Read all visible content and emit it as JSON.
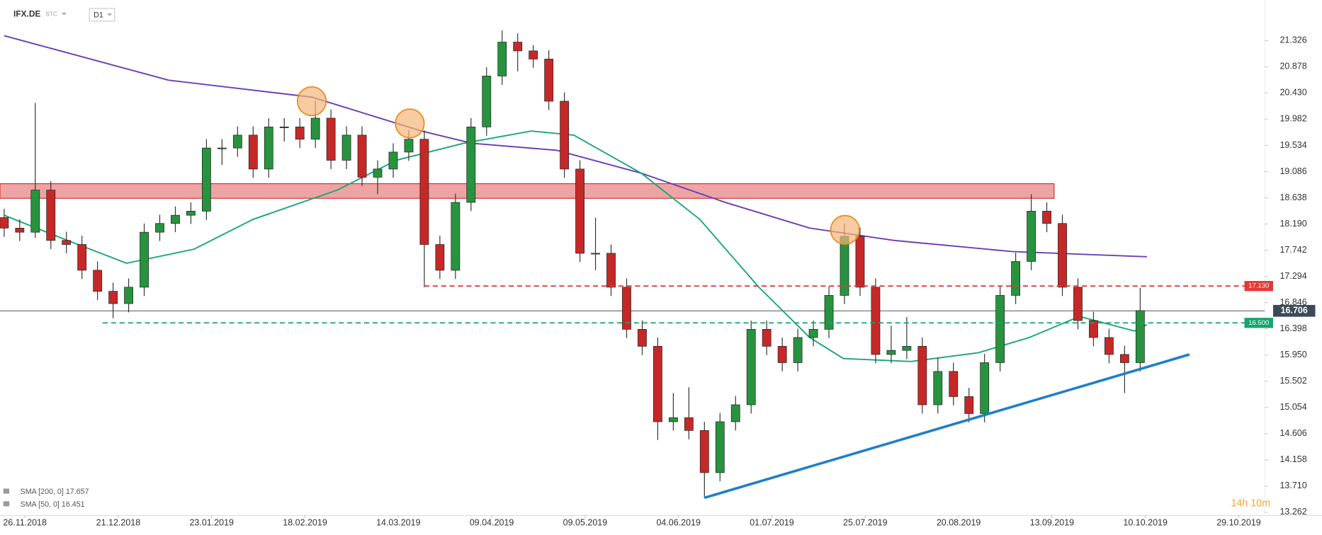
{
  "chart_data": {
    "type": "candlestick",
    "symbol": "IFX.DE",
    "subtitle": "STC",
    "interval": "D1",
    "countdown": "14h 10m",
    "xlim": [
      -0.8,
      243
    ],
    "ylim": [
      13.22,
      22.02
    ],
    "yticks": [
      21.326,
      20.878,
      {
        "value": 20.43,
        "label": "20.430"
      },
      19.982,
      19.534,
      19.086,
      18.638,
      {
        "value": 18.19,
        "label": "18.190"
      },
      17.742,
      17.294,
      16.846,
      16.398,
      {
        "value": 15.95,
        "label": "15.950"
      },
      15.502,
      15.054,
      14.606,
      14.158,
      {
        "value": 13.71,
        "label": "13.710"
      },
      13.262
    ],
    "xticks": [
      {
        "value": 4,
        "label": "26.11.2018"
      },
      {
        "value": 22,
        "label": "21.12.2018"
      },
      {
        "value": 40,
        "label": "23.01.2019"
      },
      {
        "value": 58,
        "label": "18.02.2019"
      },
      {
        "value": 76,
        "label": "14.03.2019"
      },
      {
        "value": 94,
        "label": "09.04.2019"
      },
      {
        "value": 112,
        "label": "09.05.2019"
      },
      {
        "value": 130,
        "label": "04.06.2019"
      },
      {
        "value": 148,
        "label": "01.07.2019"
      },
      {
        "value": 166,
        "label": "25.07.2019"
      },
      {
        "value": 184,
        "label": "20.08.2019"
      },
      {
        "value": 202,
        "label": "13.09.2019"
      },
      {
        "value": 220,
        "label": "10.10.2019"
      },
      {
        "value": 238,
        "label": "29.10.2019"
      }
    ],
    "up_color": "#27933f",
    "down_color": "#c62828",
    "x": [
      0,
      3,
      6,
      9,
      12,
      15,
      18,
      21,
      24,
      27,
      30,
      33,
      36,
      39,
      42,
      45,
      48,
      51,
      54,
      57,
      60,
      63,
      66,
      69,
      72,
      75,
      78,
      81,
      84,
      87,
      90,
      93,
      96,
      99,
      102,
      105,
      108,
      111,
      114,
      117,
      120,
      123,
      126,
      129,
      132,
      135,
      138,
      141,
      144,
      147,
      150,
      153,
      156,
      159,
      162,
      165,
      168,
      171,
      174,
      177,
      180,
      183,
      186,
      189,
      192,
      195,
      198,
      201,
      204,
      207,
      210,
      213,
      216,
      219
    ],
    "open": [
      18.3,
      18.12,
      18.05,
      18.77,
      17.91,
      17.84,
      17.4,
      17.04,
      16.83,
      17.11,
      18.05,
      18.2,
      18.34,
      18.41,
      19.49,
      19.49,
      19.71,
      19.13,
      19.85,
      19.85,
      19.64,
      20.0,
      19.28,
      19.71,
      18.99,
      19.13,
      19.42,
      19.64,
      17.84,
      17.4,
      18.56,
      19.85,
      20.72,
      21.3,
      21.15,
      21.01,
      20.29,
      19.13,
      17.69,
      17.69,
      17.11,
      16.39,
      16.1,
      14.81,
      14.88,
      14.66,
      13.94,
      14.81,
      15.1,
      16.39,
      16.1,
      15.82,
      16.25,
      16.39,
      16.97,
      17.98,
      17.11,
      15.96,
      16.03,
      16.1,
      15.1,
      15.67,
      15.24,
      14.95,
      15.82,
      16.97,
      17.55,
      18.41,
      18.2,
      17.11,
      16.54,
      16.25,
      15.96,
      15.82
    ],
    "high": [
      18.45,
      18.27,
      20.26,
      18.92,
      18.06,
      17.99,
      17.55,
      17.19,
      17.26,
      18.2,
      18.35,
      18.49,
      18.56,
      19.64,
      19.64,
      19.86,
      19.86,
      20.0,
      20.0,
      20.0,
      20.3,
      20.15,
      19.86,
      19.86,
      19.28,
      19.57,
      19.79,
      19.79,
      17.99,
      18.71,
      20.0,
      20.87,
      21.5,
      21.45,
      21.25,
      21.16,
      20.44,
      19.28,
      18.3,
      17.84,
      17.26,
      16.54,
      16.25,
      15.3,
      15.4,
      14.81,
      14.96,
      15.25,
      16.54,
      16.54,
      16.25,
      16.4,
      16.54,
      17.12,
      18.2,
      18.13,
      17.26,
      16.45,
      16.6,
      16.25,
      15.9,
      15.82,
      15.39,
      15.97,
      17.12,
      17.7,
      18.7,
      18.56,
      18.35,
      17.26,
      16.69,
      16.4,
      16.11,
      17.1
    ],
    "low": [
      17.97,
      17.9,
      17.95,
      17.76,
      17.69,
      17.25,
      16.89,
      16.58,
      16.68,
      16.96,
      17.9,
      18.05,
      18.19,
      18.26,
      19.2,
      19.34,
      18.98,
      18.98,
      19.6,
      19.49,
      19.49,
      19.13,
      19.13,
      18.84,
      18.7,
      18.98,
      19.27,
      17.11,
      17.25,
      17.25,
      18.41,
      19.7,
      20.57,
      20.8,
      20.86,
      20.14,
      18.98,
      17.54,
      17.4,
      16.96,
      16.24,
      15.95,
      14.5,
      14.66,
      14.51,
      13.51,
      13.79,
      14.66,
      14.95,
      15.95,
      15.67,
      15.67,
      16.1,
      16.24,
      16.82,
      16.96,
      15.81,
      15.81,
      15.88,
      14.95,
      14.95,
      15.09,
      14.8,
      14.8,
      15.67,
      16.82,
      17.4,
      18.05,
      16.96,
      16.39,
      16.1,
      15.81,
      15.3,
      15.67
    ],
    "close": [
      18.12,
      18.05,
      18.77,
      17.91,
      17.84,
      17.4,
      17.04,
      16.83,
      17.11,
      18.05,
      18.2,
      18.34,
      18.41,
      19.49,
      19.49,
      19.71,
      19.13,
      19.85,
      19.85,
      19.64,
      20.0,
      19.28,
      19.71,
      18.99,
      19.13,
      19.42,
      19.64,
      17.84,
      17.4,
      18.56,
      19.85,
      20.72,
      21.3,
      21.15,
      21.01,
      20.29,
      19.13,
      17.69,
      17.69,
      17.11,
      16.39,
      16.1,
      14.81,
      14.88,
      14.66,
      13.94,
      14.81,
      15.1,
      16.39,
      16.1,
      15.82,
      16.25,
      16.39,
      16.97,
      17.98,
      17.11,
      15.96,
      16.03,
      16.1,
      15.1,
      15.67,
      15.24,
      14.95,
      15.82,
      16.97,
      17.55,
      18.41,
      18.2,
      17.11,
      16.54,
      16.25,
      15.96,
      15.82,
      16.71
    ],
    "sma": [
      {
        "name": "SMA [200, 0] 17.657",
        "color": "#6a3fb5",
        "x": [
          0,
          31.7,
          59.3,
          80.5,
          90.2,
          106.5,
          122.8,
          139,
          155.3,
          171.5,
          194.3,
          220.3
        ],
        "values": [
          21.41,
          20.65,
          20.36,
          19.78,
          19.57,
          19.45,
          19.06,
          18.56,
          18.12,
          17.91,
          17.72,
          17.63
        ]
      },
      {
        "name": "SMA [50, 0] 16.451",
        "color": "#1aa67a",
        "x": [
          0,
          12.2,
          23.6,
          36.6,
          48,
          64.2,
          75.6,
          88.6,
          101.6,
          109.8,
          122.8,
          134.1,
          145.5,
          155.3,
          161.8,
          174.8,
          187.8,
          197.6,
          207.3,
          217.9,
          220.3
        ],
        "values": [
          18.34,
          17.91,
          17.52,
          17.76,
          18.27,
          18.77,
          19.28,
          19.57,
          19.78,
          19.71,
          19.06,
          18.27,
          17.11,
          16.25,
          15.89,
          15.84,
          15.99,
          16.25,
          16.61,
          16.36,
          16.47
        ]
      }
    ],
    "zone": {
      "x": [
        -0.8,
        202.4
      ],
      "price": [
        18.63,
        18.88
      ],
      "color": "#e57373"
    },
    "trendline": {
      "x": [
        135,
        228.5
      ],
      "price": [
        13.51,
        15.96
      ],
      "color": "#1e7fc8"
    },
    "levels": [
      {
        "price": 17.13,
        "label": "17.130",
        "x": [
          81,
          240
        ],
        "color": "#e53935"
      },
      {
        "price": 16.5,
        "label": "16.500",
        "x": [
          19,
          240
        ],
        "color": "#16a56f"
      }
    ],
    "last_price": 16.706,
    "highlights": [
      {
        "x": 59.3,
        "price": 20.29
      },
      {
        "x": 78.2,
        "price": 19.91
      },
      {
        "x": 162.1,
        "price": 18.09
      }
    ]
  }
}
